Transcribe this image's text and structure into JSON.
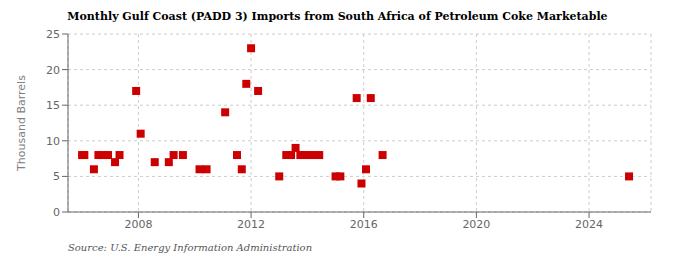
{
  "chart_data": {
    "type": "scatter",
    "title": "Monthly Gulf Coast (PADD 3) Imports from South Africa of Petroleum Coke Marketable",
    "ylabel": "Thousand Barrels",
    "source": "Source: U.S. Energy Information Administration",
    "color": "#cc0000",
    "marker": "square",
    "grid": true,
    "xlim": [
      2005.5,
      2026.2
    ],
    "xticks": [
      2008,
      2012,
      2016,
      2020,
      2024
    ],
    "ylim": [
      0,
      25
    ],
    "yticks": [
      0,
      5,
      10,
      15,
      20,
      25
    ],
    "x": [
      2006.0,
      2006.08,
      2006.42,
      2006.58,
      2006.75,
      2006.92,
      2007.17,
      2007.33,
      2007.92,
      2008.08,
      2008.58,
      2009.08,
      2009.25,
      2009.58,
      2010.17,
      2010.42,
      2011.08,
      2011.5,
      2011.67,
      2011.83,
      2012.0,
      2012.25,
      2013.0,
      2013.25,
      2013.42,
      2013.58,
      2013.75,
      2013.92,
      2014.08,
      2014.25,
      2014.42,
      2015.0,
      2015.17,
      2015.75,
      2015.92,
      2016.08,
      2016.25,
      2016.67,
      2025.42
    ],
    "values": [
      8.0,
      8.0,
      6.0,
      8.0,
      8.0,
      8.0,
      7.0,
      8.0,
      17.0,
      11.0,
      7.0,
      7.0,
      8.0,
      8.0,
      6.0,
      6.0,
      14.0,
      8.0,
      6.0,
      18.0,
      23.0,
      17.0,
      5.0,
      8.0,
      8.0,
      9.0,
      8.0,
      8.0,
      8.0,
      8.0,
      8.0,
      5.0,
      5.0,
      16.0,
      4.0,
      6.0,
      16.0,
      8.0,
      5.0
    ]
  }
}
